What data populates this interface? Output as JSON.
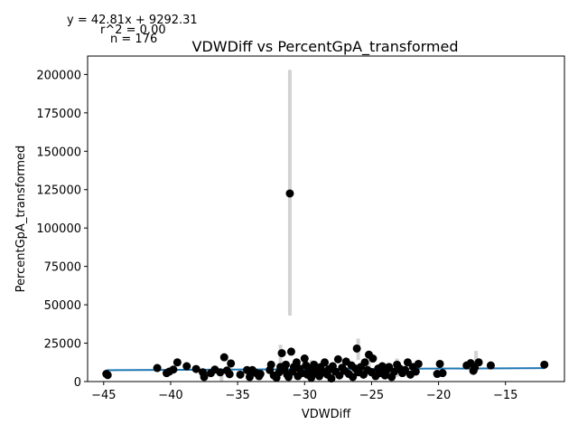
{
  "chart_data": {
    "type": "scatter",
    "title": "VDWDiff vs PercentGpA_transformed",
    "xlabel": "VDWDiff",
    "ylabel": "PercentGpA_transformed",
    "xlim": [
      -46.2,
      -10.6
    ],
    "ylim": [
      0,
      212000
    ],
    "xticks": [
      -45,
      -40,
      -35,
      -30,
      -25,
      -20,
      -15
    ],
    "yticks": [
      0,
      25000,
      50000,
      75000,
      100000,
      125000,
      150000,
      175000,
      200000
    ],
    "grid": false,
    "annotations": {
      "equation": "y = 42.81x + 9292.31",
      "r2": "r^2 = 0.00",
      "n": "n = 176"
    },
    "regression": {
      "slope": 42.81,
      "intercept": 9292.31
    },
    "colors": {
      "points": "#000000",
      "fit_line": "#1f77b4",
      "error_bars": "#d3d3d3"
    },
    "error_bars": [
      {
        "x": -31.1,
        "low": 43000,
        "high": 203000
      },
      {
        "x": -26.0,
        "low": 14000,
        "high": 28000
      },
      {
        "x": -25.2,
        "low": 8000,
        "high": 19000
      },
      {
        "x": -31.8,
        "low": 9000,
        "high": 24000
      },
      {
        "x": -29.5,
        "low": 4000,
        "high": 14000
      },
      {
        "x": -22.3,
        "low": 4000,
        "high": 14000
      },
      {
        "x": -17.2,
        "low": 6000,
        "high": 20000
      },
      {
        "x": -23.1,
        "low": 3000,
        "high": 15000
      },
      {
        "x": -36.2,
        "low": 0,
        "high": 6000
      },
      {
        "x": -28.0,
        "low": 2000,
        "high": 12000
      }
    ],
    "points": [
      {
        "x": -44.8,
        "y": 5000
      },
      {
        "x": -44.7,
        "y": 4200
      },
      {
        "x": -41.0,
        "y": 8800
      },
      {
        "x": -40.3,
        "y": 5500
      },
      {
        "x": -40.1,
        "y": 6500
      },
      {
        "x": -39.8,
        "y": 7800
      },
      {
        "x": -39.5,
        "y": 12500
      },
      {
        "x": -38.8,
        "y": 10000
      },
      {
        "x": -38.1,
        "y": 8200
      },
      {
        "x": -37.6,
        "y": 6000
      },
      {
        "x": -37.5,
        "y": 3000
      },
      {
        "x": -37.0,
        "y": 5500
      },
      {
        "x": -36.7,
        "y": 7800
      },
      {
        "x": -36.3,
        "y": 6000
      },
      {
        "x": -36.0,
        "y": 15800
      },
      {
        "x": -35.8,
        "y": 7200
      },
      {
        "x": -35.5,
        "y": 11800
      },
      {
        "x": -35.6,
        "y": 4800
      },
      {
        "x": -34.8,
        "y": 4500
      },
      {
        "x": -34.3,
        "y": 7500
      },
      {
        "x": -34.1,
        "y": 3000
      },
      {
        "x": -33.9,
        "y": 7500
      },
      {
        "x": -33.6,
        "y": 5500
      },
      {
        "x": -33.4,
        "y": 3500
      },
      {
        "x": -33.3,
        "y": 5000
      },
      {
        "x": -32.6,
        "y": 7500
      },
      {
        "x": -32.5,
        "y": 11000
      },
      {
        "x": -32.3,
        "y": 4000
      },
      {
        "x": -32.1,
        "y": 2500
      },
      {
        "x": -31.9,
        "y": 6000
      },
      {
        "x": -31.8,
        "y": 9500
      },
      {
        "x": -31.7,
        "y": 18500
      },
      {
        "x": -31.5,
        "y": 7500
      },
      {
        "x": -31.4,
        "y": 11000
      },
      {
        "x": -31.3,
        "y": 4500
      },
      {
        "x": -31.2,
        "y": 3000
      },
      {
        "x": -31.1,
        "y": 122500
      },
      {
        "x": -31.0,
        "y": 19500
      },
      {
        "x": -30.9,
        "y": 6500
      },
      {
        "x": -30.8,
        "y": 9500
      },
      {
        "x": -30.6,
        "y": 12500
      },
      {
        "x": -30.5,
        "y": 3500
      },
      {
        "x": -30.4,
        "y": 8500
      },
      {
        "x": -30.2,
        "y": 5500
      },
      {
        "x": -30.0,
        "y": 15000
      },
      {
        "x": -29.9,
        "y": 10500
      },
      {
        "x": -29.8,
        "y": 4500
      },
      {
        "x": -29.7,
        "y": 7000
      },
      {
        "x": -29.5,
        "y": 2500
      },
      {
        "x": -29.4,
        "y": 9000
      },
      {
        "x": -29.3,
        "y": 11000
      },
      {
        "x": -29.2,
        "y": 5500
      },
      {
        "x": -29.0,
        "y": 7500
      },
      {
        "x": -28.9,
        "y": 3500
      },
      {
        "x": -28.8,
        "y": 9500
      },
      {
        "x": -28.6,
        "y": 6000
      },
      {
        "x": -28.5,
        "y": 12500
      },
      {
        "x": -28.3,
        "y": 4500
      },
      {
        "x": -28.2,
        "y": 8000
      },
      {
        "x": -28.0,
        "y": 2000
      },
      {
        "x": -27.9,
        "y": 10000
      },
      {
        "x": -27.7,
        "y": 6500
      },
      {
        "x": -27.5,
        "y": 14500
      },
      {
        "x": -27.4,
        "y": 4000
      },
      {
        "x": -27.2,
        "y": 9000
      },
      {
        "x": -27.0,
        "y": 7000
      },
      {
        "x": -26.9,
        "y": 13000
      },
      {
        "x": -26.7,
        "y": 5000
      },
      {
        "x": -26.5,
        "y": 10500
      },
      {
        "x": -26.4,
        "y": 3000
      },
      {
        "x": -26.2,
        "y": 8500
      },
      {
        "x": -26.1,
        "y": 21500
      },
      {
        "x": -26.0,
        "y": 6000
      },
      {
        "x": -25.8,
        "y": 9500
      },
      {
        "x": -25.6,
        "y": 4500
      },
      {
        "x": -25.5,
        "y": 12500
      },
      {
        "x": -25.3,
        "y": 7500
      },
      {
        "x": -25.2,
        "y": 17500
      },
      {
        "x": -25.0,
        "y": 6000
      },
      {
        "x": -24.9,
        "y": 15000
      },
      {
        "x": -24.7,
        "y": 3500
      },
      {
        "x": -24.5,
        "y": 8500
      },
      {
        "x": -24.4,
        "y": 5500
      },
      {
        "x": -24.2,
        "y": 10000
      },
      {
        "x": -24.0,
        "y": 4000
      },
      {
        "x": -23.9,
        "y": 7000
      },
      {
        "x": -23.7,
        "y": 9500
      },
      {
        "x": -23.5,
        "y": 3000
      },
      {
        "x": -23.3,
        "y": 6500
      },
      {
        "x": -23.1,
        "y": 11000
      },
      {
        "x": -22.9,
        "y": 8500
      },
      {
        "x": -22.7,
        "y": 5500
      },
      {
        "x": -22.5,
        "y": 7500
      },
      {
        "x": -22.3,
        "y": 12500
      },
      {
        "x": -22.1,
        "y": 4500
      },
      {
        "x": -21.9,
        "y": 9500
      },
      {
        "x": -21.7,
        "y": 6500
      },
      {
        "x": -21.5,
        "y": 11500
      },
      {
        "x": -20.1,
        "y": 5000
      },
      {
        "x": -19.9,
        "y": 11500
      },
      {
        "x": -19.7,
        "y": 5500
      },
      {
        "x": -17.9,
        "y": 10500
      },
      {
        "x": -17.6,
        "y": 12000
      },
      {
        "x": -17.4,
        "y": 7000
      },
      {
        "x": -17.3,
        "y": 9000
      },
      {
        "x": -17.0,
        "y": 12500
      },
      {
        "x": -16.1,
        "y": 10500
      },
      {
        "x": -12.1,
        "y": 11000
      }
    ]
  }
}
